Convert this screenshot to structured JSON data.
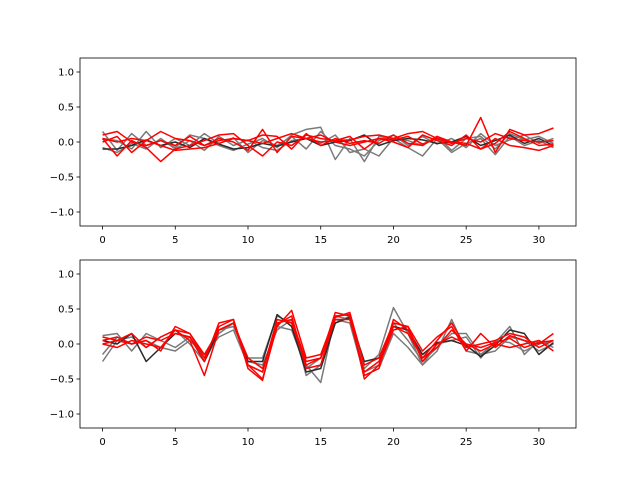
{
  "chart_data": [
    {
      "type": "line",
      "title": "",
      "xlabel": "",
      "ylabel": "",
      "xlim": [
        -1.55,
        32.55
      ],
      "ylim": [
        -1.2,
        1.2
      ],
      "xticks": [
        0,
        5,
        10,
        15,
        20,
        25,
        30
      ],
      "yticks": [
        -1.0,
        -0.5,
        0.0,
        0.5,
        1.0
      ],
      "ytick_labels": [
        "−1.0",
        "−0.5",
        "0.0",
        "0.5",
        "1.0"
      ],
      "grid": false,
      "legend": "none",
      "x": [
        0,
        1,
        2,
        3,
        4,
        5,
        6,
        7,
        8,
        9,
        10,
        11,
        12,
        13,
        14,
        15,
        16,
        17,
        18,
        19,
        20,
        21,
        22,
        23,
        24,
        25,
        26,
        27,
        28,
        29,
        30,
        31
      ],
      "series": [
        {
          "color": "#7a7a7a",
          "values": [
            0.15,
            -0.12,
            0.12,
            -0.05,
            0.02,
            -0.08,
            0.1,
            0.05,
            -0.05,
            -0.12,
            -0.03,
            0.05,
            -0.08,
            0.1,
            0.18,
            0.21,
            -0.25,
            0.05,
            -0.28,
            0.08,
            0.04,
            0.02,
            -0.05,
            0.08,
            -0.12,
            0.05,
            0.08,
            -0.1,
            0.12,
            0.03,
            0.08,
            -0.02
          ]
        },
        {
          "color": "#7a7a7a",
          "values": [
            0.05,
            0.02,
            -0.1,
            0.15,
            -0.08,
            0.05,
            -0.05,
            0.12,
            -0.02,
            0.06,
            -0.15,
            0.02,
            -0.05,
            0.08,
            -0.1,
            0.15,
            -0.05,
            -0.1,
            -0.2,
            0.02,
            0.1,
            -0.05,
            0.08,
            -0.03,
            0.05,
            -0.08,
            0.12,
            -0.05,
            0.03,
            0.1,
            -0.02,
            0.05
          ]
        },
        {
          "color": "#7a7a7a",
          "values": [
            -0.08,
            -0.15,
            -0.02,
            -0.1,
            0.05,
            -0.1,
            0.02,
            -0.12,
            0.08,
            -0.05,
            0.03,
            -0.08,
            -0.12,
            0.02,
            0.05,
            -0.02,
            0.1,
            -0.15,
            -0.1,
            -0.2,
            0.05,
            -0.08,
            -0.2,
            0.05,
            -0.15,
            -0.02,
            0.05,
            -0.18,
            0.08,
            -0.05,
            0.02,
            -0.08
          ]
        },
        {
          "color": "#2a2a2a",
          "values": [
            -0.1,
            -0.1,
            -0.05,
            0.03,
            -0.05,
            0.0,
            -0.08,
            0.05,
            -0.03,
            -0.1,
            -0.08,
            -0.02,
            -0.06,
            0.0,
            0.05,
            -0.05,
            0.0,
            0.02,
            0.1,
            -0.05,
            0.02,
            0.05,
            0.03,
            -0.02,
            0.0,
            0.08,
            -0.05,
            0.02,
            0.1,
            -0.02,
            0.05,
            -0.05
          ]
        },
        {
          "color": "#ff0000",
          "values": [
            0.1,
            0.15,
            0.0,
            -0.05,
            0.02,
            -0.05,
            0.08,
            -0.05,
            0.05,
            0.0,
            -0.12,
            0.18,
            -0.15,
            0.08,
            0.05,
            0.1,
            0.0,
            -0.05,
            0.0,
            0.05,
            0.03,
            0.08,
            -0.03,
            0.05,
            0.0,
            -0.05,
            0.35,
            -0.15,
            0.18,
            0.1,
            0.12,
            0.2
          ]
        },
        {
          "color": "#ff0000",
          "values": [
            0.05,
            -0.2,
            0.02,
            -0.08,
            -0.28,
            -0.1,
            -0.05,
            0.02,
            0.1,
            0.12,
            -0.05,
            -0.2,
            0.0,
            -0.05,
            0.1,
            0.05,
            0.02,
            0.08,
            -0.1,
            0.05,
            0.0,
            -0.08,
            0.1,
            0.02,
            -0.05,
            0.1,
            -0.1,
            -0.02,
            0.15,
            0.05,
            -0.05,
            -0.03
          ]
        },
        {
          "color": "#ff0000",
          "values": [
            0.0,
            0.08,
            -0.15,
            0.02,
            -0.05,
            -0.12,
            -0.1,
            -0.08,
            -0.02,
            0.05,
            0.02,
            0.1,
            0.08,
            -0.1,
            0.12,
            -0.05,
            0.05,
            -0.02,
            0.02,
            -0.02,
            0.1,
            -0.02,
            -0.05,
            0.08,
            0.0,
            -0.02,
            -0.1,
            0.05,
            -0.05,
            -0.08,
            -0.12,
            -0.05
          ]
        },
        {
          "color": "#ff0000",
          "values": [
            0.05,
            0.0,
            0.05,
            0.02,
            0.15,
            0.05,
            0.02,
            -0.05,
            0.02,
            0.05,
            0.02,
            -0.02,
            0.05,
            0.12,
            0.05,
            0.0,
            0.02,
            0.03,
            0.08,
            0.1,
            0.05,
            0.12,
            0.15,
            0.05,
            -0.02,
            0.05,
            0.0,
            0.12,
            0.05,
            0.02,
            0.0,
            0.02
          ]
        }
      ]
    },
    {
      "type": "line",
      "title": "",
      "xlabel": "",
      "ylabel": "",
      "xlim": [
        -1.55,
        32.55
      ],
      "ylim": [
        -1.2,
        1.2
      ],
      "xticks": [
        0,
        5,
        10,
        15,
        20,
        25,
        30
      ],
      "yticks": [
        -1.0,
        -0.5,
        0.0,
        0.5,
        1.0
      ],
      "ytick_labels": [
        "−1.0",
        "−0.5",
        "0.0",
        "0.5",
        "1.0"
      ],
      "grid": false,
      "legend": "none",
      "x": [
        0,
        1,
        2,
        3,
        4,
        5,
        6,
        7,
        8,
        9,
        10,
        11,
        12,
        13,
        14,
        15,
        16,
        17,
        18,
        19,
        20,
        21,
        22,
        23,
        24,
        25,
        26,
        27,
        28,
        29,
        30,
        31
      ],
      "series": [
        {
          "color": "#7a7a7a",
          "values": [
            0.12,
            0.15,
            -0.1,
            0.15,
            0.05,
            -0.05,
            0.1,
            -0.2,
            0.2,
            0.25,
            -0.2,
            -0.2,
            0.4,
            0.3,
            -0.3,
            -0.55,
            0.4,
            0.35,
            -0.35,
            -0.15,
            0.52,
            0.15,
            -0.3,
            -0.1,
            0.35,
            -0.1,
            -0.15,
            0.02,
            0.25,
            -0.15,
            0.05,
            -0.05
          ]
        },
        {
          "color": "#7a7a7a",
          "values": [
            -0.25,
            0.05,
            0.1,
            -0.05,
            0.1,
            0.2,
            0.0,
            -0.25,
            0.15,
            0.3,
            -0.25,
            -0.3,
            0.2,
            0.35,
            -0.45,
            -0.3,
            0.3,
            0.4,
            -0.4,
            -0.3,
            0.3,
            0.05,
            -0.25,
            -0.05,
            0.15,
            0.15,
            -0.15,
            -0.1,
            0.1,
            0.05,
            -0.1,
            0.0
          ]
        },
        {
          "color": "#7a7a7a",
          "values": [
            -0.15,
            0.1,
            0.0,
            0.05,
            -0.05,
            -0.1,
            0.05,
            -0.15,
            0.1,
            0.2,
            -0.3,
            -0.4,
            0.25,
            0.2,
            -0.35,
            -0.2,
            0.35,
            0.3,
            -0.45,
            -0.35,
            0.15,
            -0.05,
            -0.3,
            0.0,
            0.05,
            0.1,
            -0.2,
            0.05,
            0.02,
            -0.1,
            0.0,
            0.05
          ]
        },
        {
          "color": "#2a2a2a",
          "values": [
            0.05,
            0.0,
            0.15,
            -0.25,
            -0.05,
            0.15,
            0.1,
            -0.25,
            0.2,
            0.3,
            -0.25,
            -0.25,
            0.42,
            0.25,
            -0.4,
            -0.35,
            0.3,
            0.38,
            -0.25,
            -0.2,
            0.25,
            0.2,
            -0.15,
            0.02,
            0.05,
            -0.02,
            -0.18,
            -0.02,
            0.2,
            0.15,
            -0.15,
            0.02
          ]
        },
        {
          "color": "#ff0000",
          "values": [
            0.0,
            -0.05,
            0.05,
            0.0,
            -0.05,
            0.2,
            0.05,
            -0.45,
            0.2,
            0.3,
            -0.3,
            -0.5,
            0.25,
            0.48,
            -0.2,
            -0.15,
            0.4,
            0.42,
            -0.5,
            -0.3,
            0.2,
            0.25,
            -0.1,
            0.1,
            0.25,
            -0.1,
            0.15,
            -0.05,
            0.12,
            0.05,
            0.0,
            0.15
          ]
        },
        {
          "color": "#ff0000",
          "values": [
            0.1,
            0.05,
            0.15,
            -0.05,
            0.1,
            0.2,
            0.15,
            -0.2,
            0.25,
            0.35,
            -0.35,
            -0.52,
            0.3,
            0.35,
            -0.25,
            -0.2,
            0.45,
            0.4,
            -0.45,
            -0.35,
            0.35,
            0.2,
            -0.2,
            0.05,
            0.3,
            -0.05,
            0.0,
            0.05,
            0.15,
            0.1,
            -0.05,
            0.05
          ]
        },
        {
          "color": "#ff0000",
          "values": [
            0.0,
            0.05,
            0.0,
            0.1,
            0.05,
            0.15,
            0.1,
            -0.25,
            0.3,
            0.35,
            -0.3,
            -0.4,
            0.35,
            0.3,
            -0.3,
            -0.2,
            0.35,
            0.35,
            -0.4,
            -0.25,
            0.25,
            0.15,
            -0.2,
            -0.05,
            0.2,
            0.0,
            -0.1,
            0.0,
            -0.05,
            0.0,
            0.05,
            -0.1
          ]
        },
        {
          "color": "#ff0000",
          "values": [
            0.05,
            0.1,
            0.0,
            0.05,
            -0.1,
            0.25,
            0.15,
            -0.15,
            0.2,
            0.3,
            -0.2,
            -0.35,
            0.28,
            0.4,
            -0.35,
            -0.3,
            0.38,
            0.45,
            -0.3,
            -0.2,
            0.3,
            0.25,
            -0.25,
            0.0,
            0.1,
            0.0,
            -0.05,
            0.02,
            0.08,
            -0.05,
            0.02,
            0.05
          ]
        }
      ]
    }
  ]
}
